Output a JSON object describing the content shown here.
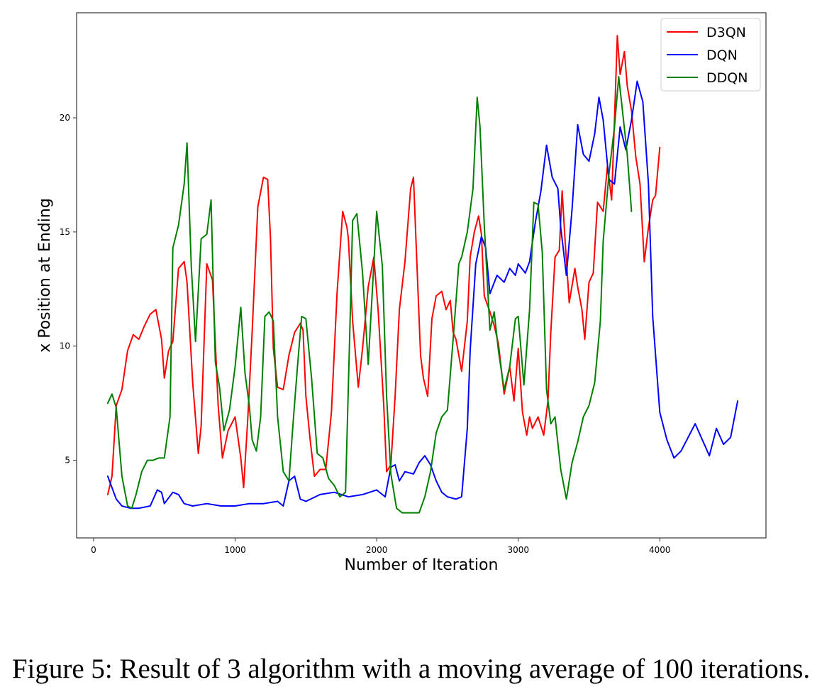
{
  "figure": {
    "caption": "Figure 5: Result of 3 algorithm with a moving average of 100 iterations."
  },
  "chart_data": {
    "type": "line",
    "title": "",
    "xlabel": "Number of Iteration",
    "ylabel": "x Position at Ending",
    "xlim": [
      -120,
      4750
    ],
    "ylim": [
      1.6,
      24.6
    ],
    "xticks": [
      0,
      1000,
      2000,
      3000,
      4000
    ],
    "yticks": [
      5,
      10,
      15,
      20
    ],
    "grid": false,
    "legend": "top-right",
    "series": [
      {
        "name": "D3QN",
        "color": "#ff0000",
        "x": [
          100,
          130,
          160,
          200,
          240,
          280,
          320,
          360,
          400,
          440,
          480,
          500,
          530,
          560,
          600,
          640,
          660,
          700,
          740,
          760,
          800,
          840,
          880,
          910,
          950,
          1000,
          1040,
          1060,
          1090,
          1120,
          1160,
          1200,
          1230,
          1250,
          1270,
          1300,
          1340,
          1380,
          1420,
          1460,
          1480,
          1500,
          1530,
          1560,
          1600,
          1640,
          1680,
          1720,
          1760,
          1790,
          1800,
          1830,
          1870,
          1900,
          1940,
          1980,
          2010,
          2050,
          2070,
          2100,
          2130,
          2160,
          2200,
          2240,
          2260,
          2290,
          2310,
          2330,
          2360,
          2390,
          2420,
          2460,
          2490,
          2520,
          2540,
          2560,
          2600,
          2640,
          2660,
          2690,
          2720,
          2740,
          2760,
          2800,
          2830,
          2860,
          2900,
          2940,
          2970,
          3000,
          3030,
          3060,
          3080,
          3100,
          3140,
          3180,
          3210,
          3230,
          3260,
          3290,
          3310,
          3330,
          3360,
          3400,
          3420,
          3450,
          3470,
          3500,
          3530,
          3560,
          3600,
          3630,
          3660,
          3680,
          3700,
          3720,
          3750,
          3770,
          3800,
          3830,
          3860,
          3890,
          3920,
          3950,
          3970,
          4000
        ],
        "values": [
          3.5,
          4.3,
          7.4,
          8.1,
          9.8,
          10.5,
          10.3,
          10.9,
          11.4,
          11.6,
          10.3,
          8.6,
          9.8,
          10.2,
          13.4,
          13.7,
          12.8,
          8.4,
          5.3,
          6.5,
          13.6,
          12.9,
          7.4,
          5.1,
          6.3,
          6.9,
          5.1,
          3.8,
          6.9,
          10.6,
          16.1,
          17.4,
          17.3,
          14.7,
          9.9,
          8.2,
          8.1,
          9.6,
          10.6,
          11.0,
          10.7,
          7.8,
          5.9,
          4.3,
          4.6,
          4.6,
          7.1,
          12.3,
          15.9,
          15.2,
          14.7,
          11.1,
          8.2,
          9.9,
          12.6,
          13.9,
          11.6,
          7.4,
          4.5,
          4.8,
          7.8,
          11.6,
          13.7,
          16.9,
          17.4,
          12.7,
          9.6,
          8.6,
          7.8,
          11.2,
          12.2,
          12.4,
          11.6,
          12.0,
          10.6,
          10.3,
          8.9,
          11.1,
          13.9,
          15.0,
          15.7,
          14.9,
          12.2,
          11.5,
          10.9,
          10.1,
          7.9,
          9.1,
          7.6,
          9.9,
          7.1,
          6.1,
          6.9,
          6.4,
          6.9,
          6.1,
          7.6,
          10.6,
          13.9,
          14.2,
          16.8,
          14.7,
          11.9,
          13.4,
          12.6,
          11.6,
          10.3,
          12.8,
          13.2,
          16.3,
          15.9,
          17.9,
          16.4,
          19.9,
          23.6,
          21.9,
          22.9,
          21.4,
          20.3,
          18.3,
          17.1,
          13.7,
          15.2,
          16.4,
          16.6,
          18.7
        ]
      },
      {
        "name": "DQN",
        "color": "#0000ff",
        "x": [
          100,
          130,
          160,
          200,
          260,
          320,
          400,
          450,
          480,
          500,
          560,
          600,
          640,
          700,
          800,
          900,
          1000,
          1100,
          1200,
          1300,
          1340,
          1380,
          1420,
          1460,
          1500,
          1600,
          1700,
          1800,
          1900,
          2000,
          2060,
          2100,
          2130,
          2160,
          2200,
          2260,
          2300,
          2340,
          2380,
          2420,
          2460,
          2500,
          2560,
          2600,
          2640,
          2660,
          2700,
          2740,
          2770,
          2800,
          2850,
          2900,
          2940,
          2980,
          3000,
          3050,
          3080,
          3120,
          3160,
          3200,
          3240,
          3280,
          3300,
          3340,
          3380,
          3420,
          3460,
          3500,
          3540,
          3570,
          3600,
          3640,
          3680,
          3720,
          3760,
          3800,
          3840,
          3880,
          3920,
          3950,
          4000,
          4050,
          4100,
          4150,
          4200,
          4250,
          4300,
          4350,
          4400,
          4450,
          4500,
          4550
        ],
        "values": [
          4.3,
          3.8,
          3.3,
          3.0,
          2.9,
          2.9,
          3.0,
          3.7,
          3.6,
          3.1,
          3.6,
          3.5,
          3.1,
          3.0,
          3.1,
          3.0,
          3.0,
          3.1,
          3.1,
          3.2,
          3.0,
          4.1,
          4.3,
          3.3,
          3.2,
          3.5,
          3.6,
          3.4,
          3.5,
          3.7,
          3.4,
          4.7,
          4.8,
          4.1,
          4.5,
          4.4,
          4.9,
          5.2,
          4.8,
          4.1,
          3.6,
          3.4,
          3.3,
          3.4,
          6.4,
          9.8,
          13.6,
          14.8,
          14.3,
          12.3,
          13.1,
          12.8,
          13.4,
          13.1,
          13.6,
          13.2,
          13.7,
          15.4,
          16.8,
          18.8,
          17.4,
          16.9,
          15.2,
          13.1,
          16.0,
          19.7,
          18.4,
          18.1,
          19.3,
          20.9,
          19.9,
          17.3,
          17.1,
          19.6,
          18.6,
          19.9,
          21.6,
          20.7,
          17.1,
          11.3,
          7.1,
          5.9,
          5.1,
          5.4,
          6.0,
          6.6,
          5.9,
          5.2,
          6.4,
          5.7,
          6.0,
          7.6
        ]
      },
      {
        "name": "DDQN",
        "color": "#008000",
        "x": [
          100,
          130,
          160,
          200,
          240,
          270,
          300,
          340,
          380,
          420,
          460,
          500,
          540,
          560,
          600,
          640,
          660,
          690,
          720,
          760,
          800,
          830,
          860,
          890,
          920,
          960,
          1000,
          1040,
          1070,
          1100,
          1120,
          1150,
          1180,
          1210,
          1240,
          1270,
          1300,
          1340,
          1380,
          1410,
          1440,
          1470,
          1500,
          1540,
          1580,
          1620,
          1660,
          1700,
          1740,
          1780,
          1810,
          1830,
          1860,
          1900,
          1940,
          1980,
          2000,
          2040,
          2070,
          2100,
          2140,
          2180,
          2220,
          2260,
          2300,
          2340,
          2380,
          2420,
          2460,
          2500,
          2540,
          2580,
          2600,
          2640,
          2680,
          2710,
          2730,
          2760,
          2800,
          2830,
          2860,
          2900,
          2940,
          2980,
          3000,
          3040,
          3080,
          3110,
          3140,
          3170,
          3200,
          3230,
          3260,
          3300,
          3340,
          3380,
          3420,
          3460,
          3500,
          3540,
          3580,
          3600,
          3640,
          3680,
          3710,
          3740,
          3770,
          3800
        ],
        "values": [
          7.5,
          7.9,
          7.3,
          4.3,
          3.0,
          2.9,
          3.5,
          4.5,
          5.0,
          5.0,
          5.1,
          5.1,
          6.9,
          14.3,
          15.3,
          17.1,
          18.9,
          13.5,
          10.2,
          14.7,
          14.9,
          16.4,
          9.3,
          8.2,
          6.3,
          7.2,
          9.1,
          11.7,
          8.8,
          7.4,
          5.9,
          5.4,
          6.9,
          11.3,
          11.5,
          11.1,
          6.9,
          4.5,
          4.1,
          6.7,
          9.1,
          11.3,
          11.2,
          8.6,
          5.3,
          5.1,
          4.2,
          3.9,
          3.4,
          3.6,
          10.6,
          15.5,
          15.8,
          13.2,
          9.2,
          13.6,
          15.9,
          13.5,
          7.8,
          4.4,
          2.9,
          2.7,
          2.7,
          2.7,
          2.7,
          3.4,
          4.5,
          6.2,
          6.9,
          7.2,
          10.3,
          13.6,
          13.9,
          15.0,
          16.9,
          20.9,
          19.6,
          15.3,
          10.7,
          11.5,
          9.8,
          8.1,
          9.1,
          11.2,
          11.3,
          8.3,
          11.6,
          16.3,
          16.2,
          14.1,
          8.1,
          6.6,
          6.9,
          4.6,
          3.3,
          4.9,
          5.8,
          6.9,
          7.4,
          8.4,
          11.1,
          14.6,
          17.5,
          19.6,
          21.8,
          20.1,
          18.4,
          15.9
        ]
      }
    ]
  }
}
